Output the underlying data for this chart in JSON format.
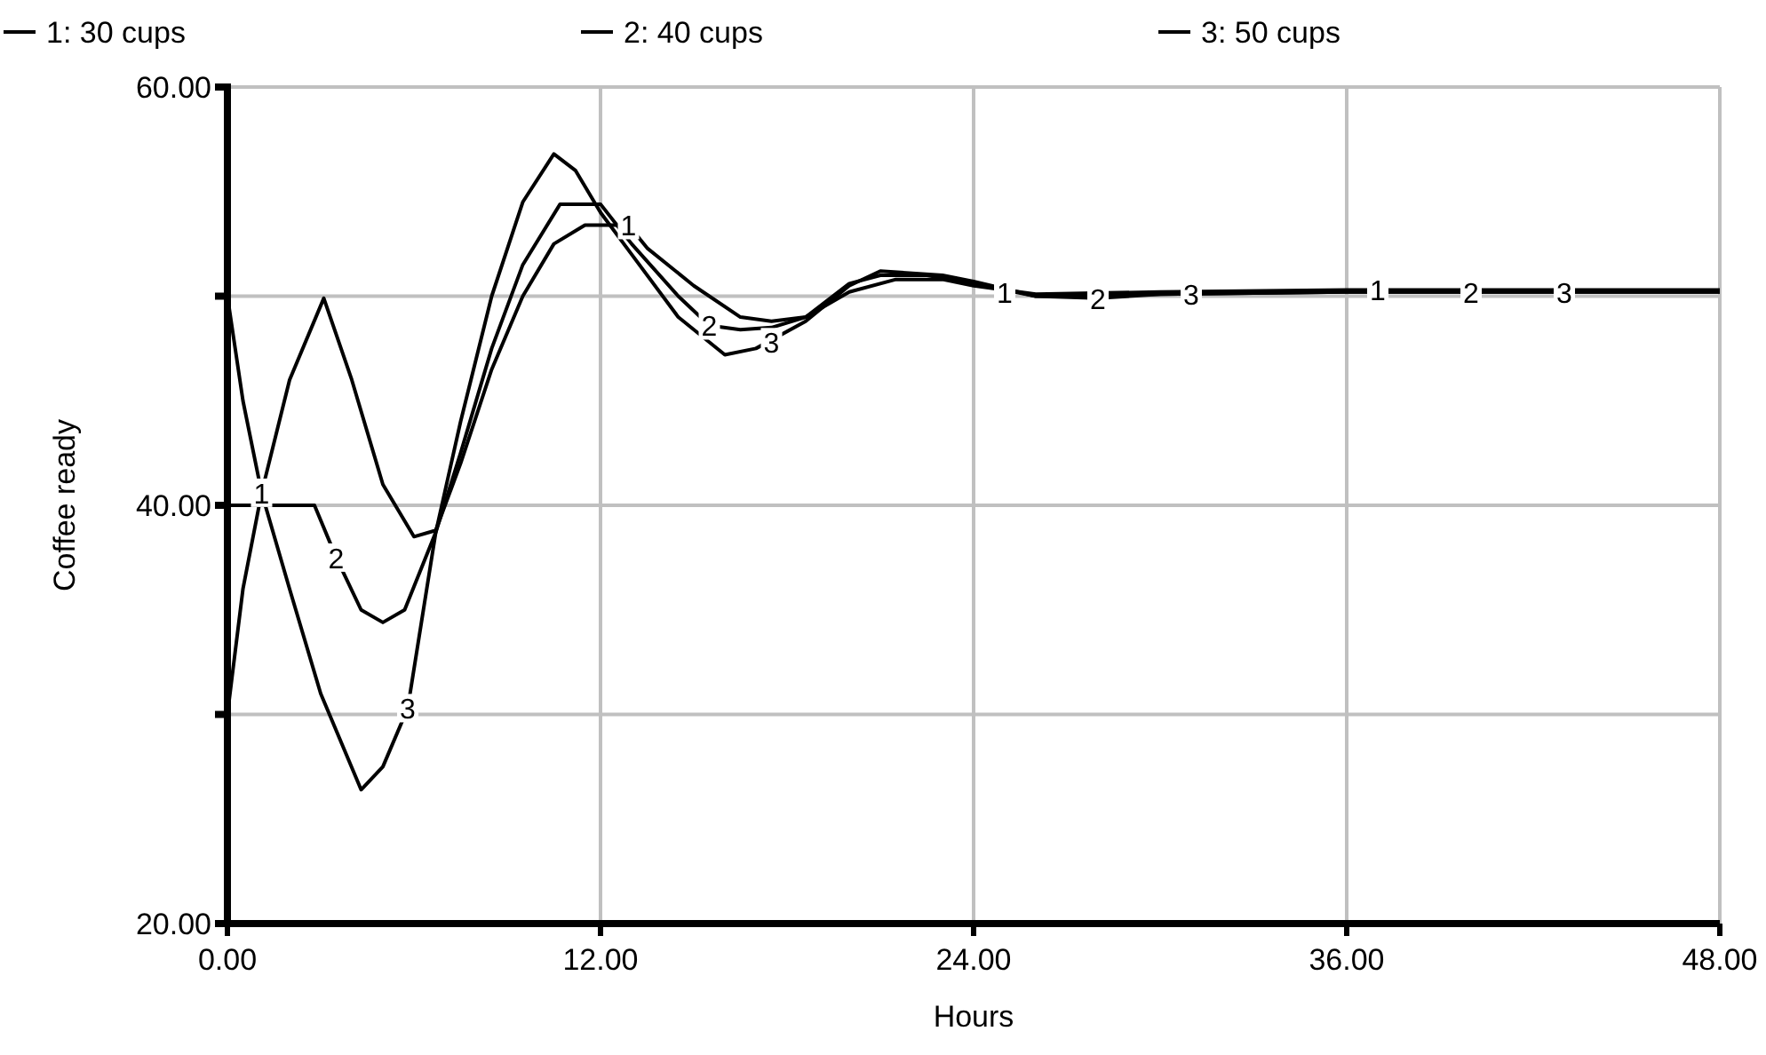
{
  "chart_data": {
    "type": "line",
    "xlabel": "Hours",
    "ylabel": "Coffee ready",
    "xlim": [
      0,
      48
    ],
    "xticks": [
      {
        "value": 0,
        "label": "0.00"
      },
      {
        "value": 12,
        "label": "12.00"
      },
      {
        "value": 24,
        "label": "24.00"
      },
      {
        "value": 36,
        "label": "36.00"
      },
      {
        "value": 48,
        "label": "48.00"
      }
    ],
    "ylim": [
      20,
      60
    ],
    "yticks": [
      {
        "value": 20,
        "label": "20.00"
      },
      {
        "value": 30,
        "label": null
      },
      {
        "value": 40,
        "label": "40.00"
      },
      {
        "value": 50,
        "label": null
      },
      {
        "value": 60,
        "label": "60.00"
      }
    ],
    "grid": true,
    "legend": "top",
    "line_style": "solid",
    "marker": "none",
    "series": [
      {
        "name": "1: 30 cups",
        "color": "#000000",
        "x": [
          0,
          0.5,
          1.1,
          2,
          3.1,
          4,
          5,
          6,
          6.7,
          7.5,
          8.5,
          9.5,
          10.5,
          11.5,
          12.9,
          13.5,
          15,
          16.5,
          17.5,
          18.6,
          20,
          21.5,
          23,
          24,
          26,
          30,
          36,
          48
        ],
        "values": [
          30,
          36,
          40.6,
          46,
          49.9,
          46,
          41,
          38.5,
          38.8,
          42,
          46.5,
          50,
          52.5,
          53.4,
          53.4,
          52.3,
          50.5,
          49,
          48.8,
          49,
          50.2,
          50.8,
          50.8,
          50.5,
          50.1,
          50.2,
          50.3,
          50.3
        ]
      },
      {
        "name": "2: 40 cups",
        "color": "#000000",
        "x": [
          0,
          2.8,
          3.5,
          4.3,
          5,
          5.7,
          6.7,
          7.5,
          8.5,
          9.5,
          10.7,
          12,
          13,
          14.5,
          15.5,
          16.5,
          17.5,
          18.6,
          20,
          21,
          22.5,
          24,
          26,
          28,
          30,
          36,
          48
        ],
        "values": [
          40,
          40,
          37.5,
          35,
          34.4,
          35,
          38.7,
          42.5,
          47.5,
          51.5,
          54.4,
          54.4,
          52.5,
          50,
          48.6,
          48.4,
          48.5,
          49,
          50.6,
          51,
          51,
          50.6,
          50,
          49.9,
          50.1,
          50.2,
          50.2
        ]
      },
      {
        "name": "3: 50 cups",
        "color": "#000000",
        "x": [
          0,
          0.5,
          1.1,
          2,
          3,
          4.3,
          5,
          5.8,
          6.7,
          7.5,
          8.5,
          9.5,
          10.5,
          11.2,
          12,
          13,
          14.5,
          16,
          17,
          18.6,
          20,
          21,
          23,
          24,
          26,
          30,
          36,
          48
        ],
        "values": [
          50,
          45,
          40.6,
          36,
          31,
          26.4,
          27.5,
          30.3,
          38.7,
          44,
          50,
          54.5,
          56.8,
          56,
          54,
          52,
          49,
          47.2,
          47.5,
          48.8,
          50.5,
          51.2,
          51,
          50.7,
          50,
          50.1,
          50.2,
          50.2
        ]
      }
    ],
    "annotations": [
      {
        "text": "1",
        "x": 1.1,
        "y": 40.6
      },
      {
        "text": "2",
        "x": 3.5,
        "y": 37.5
      },
      {
        "text": "3",
        "x": 5.8,
        "y": 30.3
      },
      {
        "text": "1",
        "x": 12.9,
        "y": 53.4
      },
      {
        "text": "2",
        "x": 15.5,
        "y": 48.6
      },
      {
        "text": "3",
        "x": 17.5,
        "y": 47.8
      },
      {
        "text": "1",
        "x": 25,
        "y": 50.2
      },
      {
        "text": "2",
        "x": 28,
        "y": 49.9
      },
      {
        "text": "3",
        "x": 31,
        "y": 50.1
      },
      {
        "text": "1",
        "x": 37,
        "y": 50.3
      },
      {
        "text": "2",
        "x": 40,
        "y": 50.2
      },
      {
        "text": "3",
        "x": 43,
        "y": 50.2
      }
    ]
  }
}
